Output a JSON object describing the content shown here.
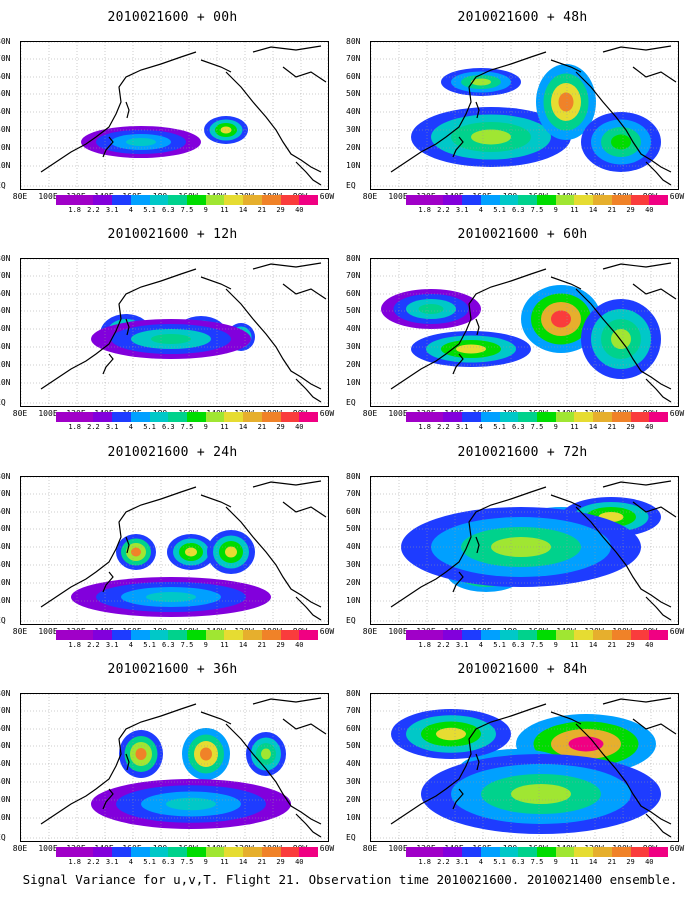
{
  "panels": [
    {
      "title": "2010021600 + 00h",
      "lead_hours": 0
    },
    {
      "title": "2010021600 + 48h",
      "lead_hours": 48
    },
    {
      "title": "2010021600 + 12h",
      "lead_hours": 12
    },
    {
      "title": "2010021600 + 60h",
      "lead_hours": 60
    },
    {
      "title": "2010021600 + 24h",
      "lead_hours": 24
    },
    {
      "title": "2010021600 + 72h",
      "lead_hours": 72
    },
    {
      "title": "2010021600 + 36h",
      "lead_hours": 36
    },
    {
      "title": "2010021600 + 84h",
      "lead_hours": 84
    }
  ],
  "lat_labels": [
    "80N",
    "70N",
    "60N",
    "50N",
    "40N",
    "30N",
    "20N",
    "10N",
    "EQ"
  ],
  "lon_labels": [
    "80E",
    "100E",
    "120E",
    "140E",
    "160E",
    "180",
    "160W",
    "140W",
    "120W",
    "100W",
    "80W",
    "60W"
  ],
  "colorbar": {
    "levels": [
      "1.8",
      "2.2",
      "3.1",
      "4",
      "5.1",
      "6.3",
      "7.5",
      "9",
      "11",
      "14",
      "21",
      "29",
      "40"
    ],
    "colors": [
      "#a000c8",
      "#8200dc",
      "#1e3cff",
      "#00a0ff",
      "#00c8c8",
      "#00d28c",
      "#00dc00",
      "#a0e632",
      "#e6dc32",
      "#e6af2d",
      "#f08228",
      "#fa3c3c",
      "#f00082"
    ]
  },
  "caption": "Signal Variance for u,v,T. Flight 21. Observation time 2010021600. 2010021400 ensemble."
}
